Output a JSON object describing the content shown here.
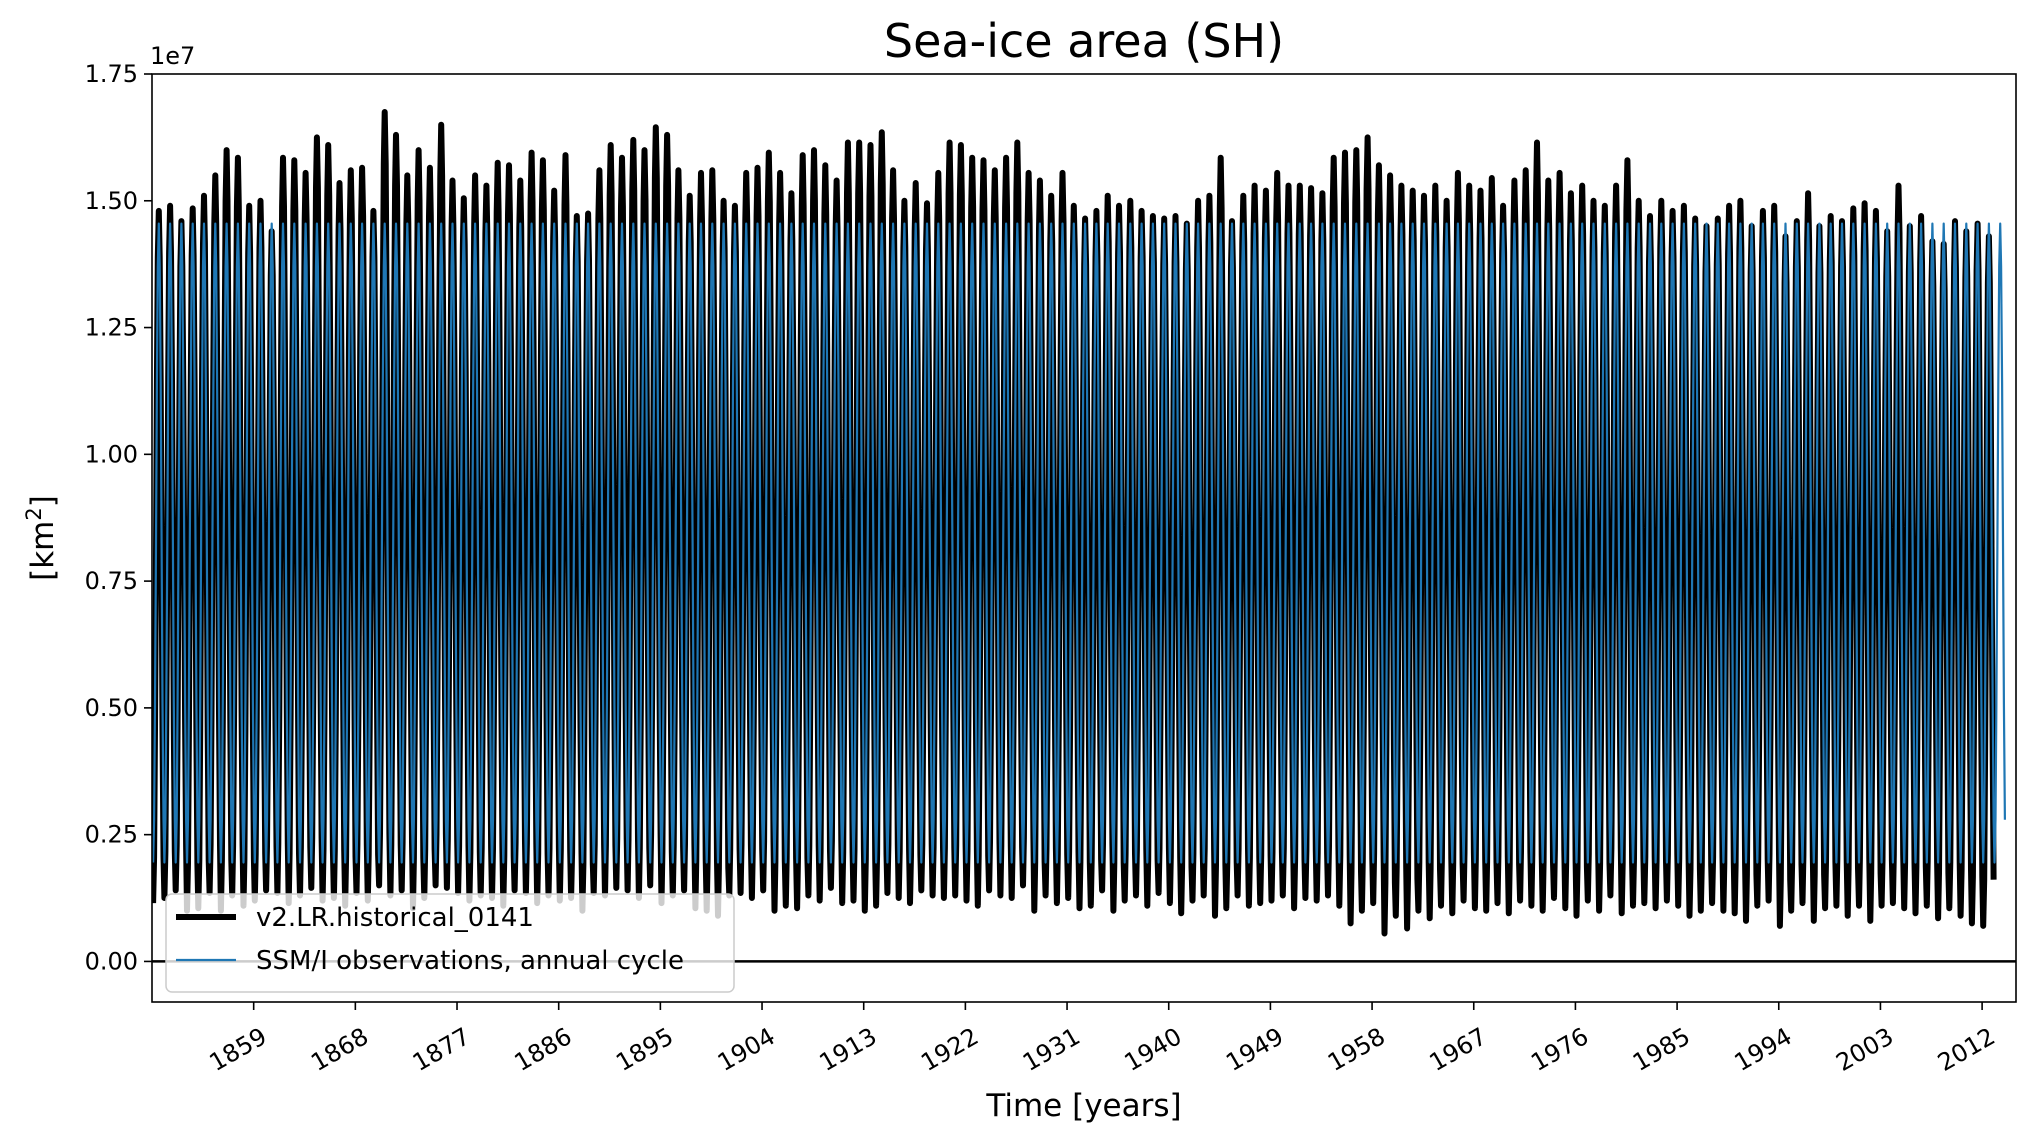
{
  "chart_data": {
    "type": "line",
    "title": "Sea-ice area (SH)",
    "xlabel": "Time [years]",
    "ylabel": "[km²]",
    "ylabel_parts": {
      "prefix": "[km",
      "superscript": "2",
      "suffix": "]"
    },
    "y_offset_label": "1e7",
    "y_scale_factor": 10000000,
    "xlim": [
      1850,
      2015
    ],
    "ylim": [
      -800000,
      17500000
    ],
    "x_ticks": [
      1859,
      1868,
      1877,
      1886,
      1895,
      1904,
      1913,
      1922,
      1931,
      1940,
      1949,
      1958,
      1967,
      1976,
      1985,
      1994,
      2003,
      2012
    ],
    "x_tick_labels": [
      "1859",
      "1868",
      "1877",
      "1886",
      "1895",
      "1904",
      "1913",
      "1922",
      "1931",
      "1940",
      "1949",
      "1958",
      "1967",
      "1976",
      "1985",
      "1994",
      "2003",
      "2012"
    ],
    "y_ticks": [
      0,
      2500000,
      5000000,
      7500000,
      10000000,
      12500000,
      15000000,
      17500000
    ],
    "y_tick_labels": [
      "0.00",
      "0.25",
      "0.50",
      "0.75",
      "1.00",
      "1.25",
      "1.50",
      "1.75"
    ],
    "reference_line_y": 0,
    "grid": false,
    "legend_position": "lower-left",
    "colors": {
      "model": "#000000",
      "observations": "#1f77b4",
      "reference": "#000000"
    },
    "series": [
      {
        "name": "v2.LR.historical_0141",
        "style": "thick-black",
        "x_start": 1850,
        "x_end": 2014,
        "annual_max": [
          14800000,
          14900000,
          14600000,
          14850000,
          15100000,
          15500000,
          16000000,
          15850000,
          14900000,
          15000000,
          14400000,
          15850000,
          15800000,
          15550000,
          16250000,
          16100000,
          15350000,
          15600000,
          15650000,
          14800000,
          16750000,
          16300000,
          15500000,
          16000000,
          15650000,
          16500000,
          15400000,
          15050000,
          15500000,
          15300000,
          15750000,
          15700000,
          15400000,
          15950000,
          15800000,
          15200000,
          15900000,
          14700000,
          14750000,
          15600000,
          16100000,
          15850000,
          16200000,
          16000000,
          16450000,
          16300000,
          15600000,
          15100000,
          15550000,
          15600000,
          15000000,
          14900000,
          15550000,
          15650000,
          15950000,
          15550000,
          15150000,
          15900000,
          16000000,
          15700000,
          15400000,
          16150000,
          16150000,
          16100000,
          16350000,
          15600000,
          15000000,
          15350000,
          14950000,
          15550000,
          16150000,
          16100000,
          15850000,
          15800000,
          15600000,
          15850000,
          16150000,
          15550000,
          15400000,
          15100000,
          15550000,
          14900000,
          14650000,
          14800000,
          15100000,
          14900000,
          15000000,
          14800000,
          14700000,
          14650000,
          14700000,
          14550000,
          15000000,
          15100000,
          15850000,
          14600000,
          15100000,
          15300000,
          15200000,
          15550000,
          15300000,
          15300000,
          15250000,
          15150000,
          15850000,
          15950000,
          16000000,
          16250000,
          15700000,
          15500000,
          15300000,
          15200000,
          15100000,
          15300000,
          15000000,
          15550000,
          15300000,
          15200000,
          15450000,
          14900000,
          15400000,
          15600000,
          16150000,
          15400000,
          15550000,
          15150000,
          15300000,
          15000000,
          14900000,
          15300000,
          15800000,
          15000000,
          14700000,
          15000000,
          14800000,
          14900000,
          14650000,
          14500000,
          14650000,
          14900000,
          15000000,
          14500000,
          14800000,
          14900000,
          14300000,
          14600000,
          15150000,
          14500000,
          14700000,
          14600000,
          14850000,
          14950000,
          14800000,
          14400000,
          15300000,
          14500000,
          14700000,
          14200000,
          14150000,
          14600000,
          14400000,
          14550000,
          14300000,
          13900000
        ],
        "annual_min": [
          1150000,
          1250000,
          1400000,
          1000000,
          1050000,
          1350000,
          1000000,
          1300000,
          1100000,
          1200000,
          1400000,
          1350000,
          1150000,
          1300000,
          1450000,
          1200000,
          1250000,
          1100000,
          1350000,
          1200000,
          1500000,
          1300000,
          1400000,
          1050000,
          1250000,
          1500000,
          1450000,
          1350000,
          1200000,
          1300000,
          1250000,
          1100000,
          1400000,
          1350000,
          1150000,
          1300000,
          1200000,
          1250000,
          1000000,
          1350000,
          1300000,
          1450000,
          1400000,
          1250000,
          1500000,
          1150000,
          1300000,
          1400000,
          1050000,
          1000000,
          900000,
          1300000,
          1350000,
          1250000,
          1400000,
          1000000,
          1100000,
          1050000,
          1300000,
          1200000,
          1450000,
          1150000,
          1200000,
          1000000,
          1100000,
          1350000,
          1250000,
          1150000,
          1400000,
          1300000,
          1250000,
          1300000,
          1200000,
          1100000,
          1400000,
          1300000,
          1250000,
          1500000,
          1000000,
          1300000,
          1150000,
          1250000,
          1050000,
          1100000,
          1400000,
          1000000,
          1200000,
          1300000,
          1100000,
          1350000,
          1150000,
          950000,
          1200000,
          1300000,
          900000,
          1050000,
          1300000,
          1100000,
          1150000,
          1200000,
          1300000,
          1050000,
          1250000,
          1200000,
          1300000,
          1100000,
          750000,
          1000000,
          1150000,
          550000,
          900000,
          650000,
          1000000,
          850000,
          1100000,
          950000,
          1200000,
          1050000,
          1000000,
          1150000,
          950000,
          1200000,
          1100000,
          1000000,
          1250000,
          1050000,
          900000,
          1200000,
          1000000,
          1300000,
          950000,
          1100000,
          1150000,
          1050000,
          1200000,
          1100000,
          900000,
          1000000,
          1150000,
          1000000,
          950000,
          800000,
          1100000,
          1200000,
          700000,
          1000000,
          1150000,
          800000,
          1050000,
          1100000,
          900000,
          1100000,
          800000,
          1100000,
          1150000,
          1050000,
          950000,
          1100000,
          850000,
          1050000,
          900000,
          750000,
          700000
        ]
      },
      {
        "name": "SSM/I observations, annual cycle",
        "style": "thin-blue",
        "annual_max": 14550000,
        "annual_min": 1950000
      }
    ]
  }
}
